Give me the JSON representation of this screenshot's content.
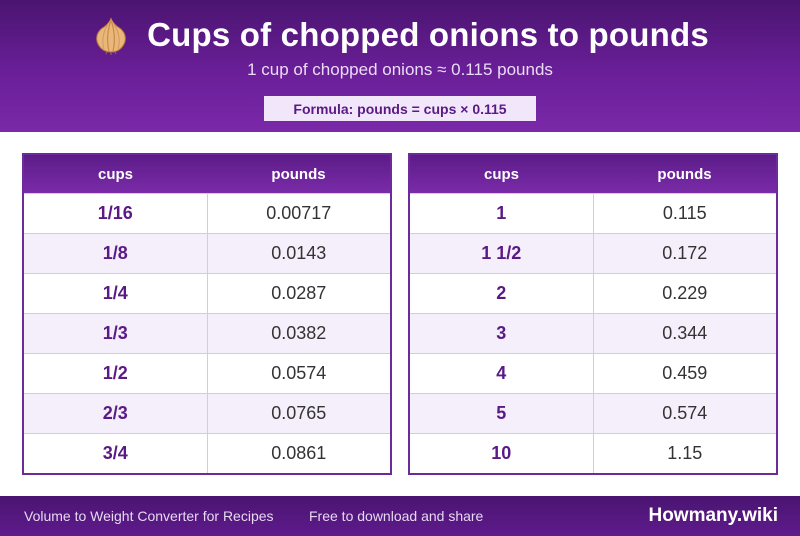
{
  "header": {
    "icon": "onion-icon",
    "title": "Cups of chopped onions to pounds",
    "subtitle": "1 cup of chopped onions ≈ 0.115 pounds",
    "formula": "Formula: pounds = cups × 0.115"
  },
  "tables": {
    "left": {
      "col1": "cups",
      "col2": "pounds",
      "rows": [
        {
          "cups": "1/16",
          "pounds": "0.00717"
        },
        {
          "cups": "1/8",
          "pounds": "0.0143"
        },
        {
          "cups": "1/4",
          "pounds": "0.0287"
        },
        {
          "cups": "1/3",
          "pounds": "0.0382"
        },
        {
          "cups": "1/2",
          "pounds": "0.0574"
        },
        {
          "cups": "2/3",
          "pounds": "0.0765"
        },
        {
          "cups": "3/4",
          "pounds": "0.0861"
        }
      ]
    },
    "right": {
      "col1": "cups",
      "col2": "pounds",
      "rows": [
        {
          "cups": "1",
          "pounds": "0.115"
        },
        {
          "cups": "1 1/2",
          "pounds": "0.172"
        },
        {
          "cups": "2",
          "pounds": "0.229"
        },
        {
          "cups": "3",
          "pounds": "0.344"
        },
        {
          "cups": "4",
          "pounds": "0.459"
        },
        {
          "cups": "5",
          "pounds": "0.574"
        },
        {
          "cups": "10",
          "pounds": "1.15"
        }
      ]
    }
  },
  "footer": {
    "left_text": "Volume to Weight Converter for Recipes",
    "middle_text": "Free to download and share",
    "brand": "Howmany.wiki"
  },
  "colors": {
    "header_dark": "#4a1470",
    "header_light": "#7a29a8",
    "accent_text": "#5a1a86",
    "row_alt": "#f5eefb"
  }
}
